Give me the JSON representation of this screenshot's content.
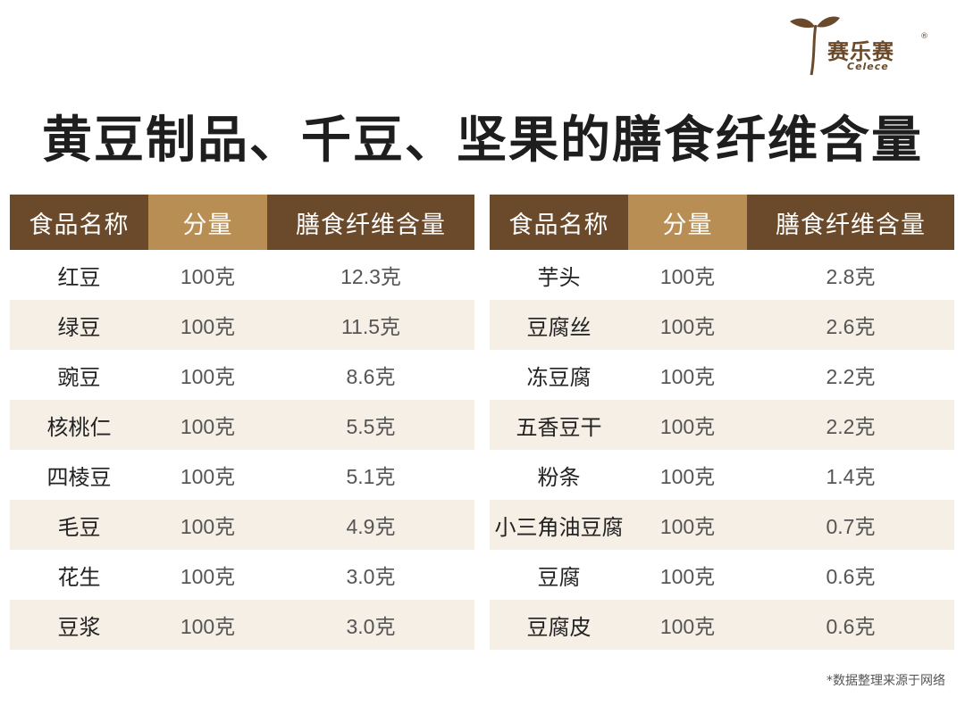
{
  "brand": {
    "name_cn": "赛乐赛",
    "registered": "®",
    "name_en": "Celece"
  },
  "title": "黄豆制品、千豆、坚果的膳食纤维含量",
  "headers": {
    "name": "食品名称",
    "amount": "分量",
    "fiber": "膳食纤维含量"
  },
  "left_rows": [
    {
      "name": "红豆",
      "amount": "100克",
      "fiber": "12.3克"
    },
    {
      "name": "绿豆",
      "amount": "100克",
      "fiber": "11.5克"
    },
    {
      "name": "豌豆",
      "amount": "100克",
      "fiber": "8.6克"
    },
    {
      "name": "核桃仁",
      "amount": "100克",
      "fiber": "5.5克"
    },
    {
      "name": "四棱豆",
      "amount": "100克",
      "fiber": "5.1克"
    },
    {
      "name": "毛豆",
      "amount": "100克",
      "fiber": "4.9克"
    },
    {
      "name": "花生",
      "amount": "100克",
      "fiber": "3.0克"
    },
    {
      "name": "豆浆",
      "amount": "100克",
      "fiber": "3.0克"
    }
  ],
  "right_rows": [
    {
      "name": "芋头",
      "amount": "100克",
      "fiber": "2.8克"
    },
    {
      "name": "豆腐丝",
      "amount": "100克",
      "fiber": "2.6克"
    },
    {
      "name": "冻豆腐",
      "amount": "100克",
      "fiber": "2.2克"
    },
    {
      "name": "五香豆干",
      "amount": "100克",
      "fiber": "2.2克"
    },
    {
      "name": "粉条",
      "amount": "100克",
      "fiber": "1.4克"
    },
    {
      "name": "小三角油豆腐",
      "amount": "100克",
      "fiber": "0.7克"
    },
    {
      "name": "豆腐",
      "amount": "100克",
      "fiber": "0.6克"
    },
    {
      "name": "豆腐皮",
      "amount": "100克",
      "fiber": "0.6克"
    }
  ],
  "note": "*数据整理来源于网络",
  "colors": {
    "header_dark": "#6b4a2b",
    "header_light": "#b98e55",
    "row_alt": "#f5efe6"
  }
}
